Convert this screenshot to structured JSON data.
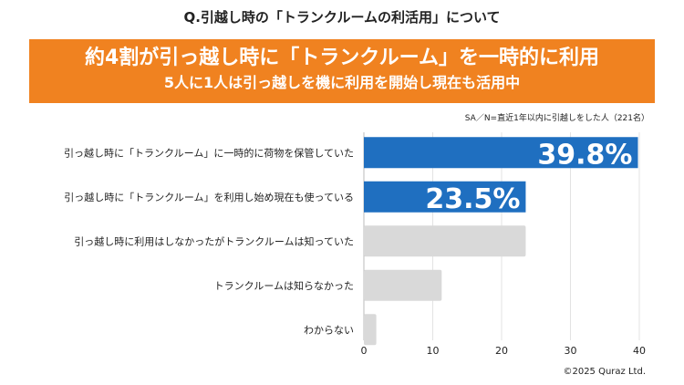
{
  "title": "Q.引越し時の「トランクルームの利活用」について",
  "banner": {
    "headline": "約4割が引っ越し時に「トランクルーム」を一時的に利用",
    "subhead": "5人に1人は引っ越しを機に利用を開始し現在も活用中"
  },
  "note": "SA／N=直近1年以内に引越しをした人（221名）",
  "copyright": "©2025 Quraz Ltd.",
  "colors": {
    "highlight": "#1f6fc0",
    "other": "#d9d9d9",
    "banner": "#f08220"
  },
  "chart_data": {
    "type": "bar",
    "orientation": "horizontal",
    "categories": [
      "引っ越し時に「トランクルーム」に一時的に荷物を保管していた",
      "引っ越し時に「トランクルーム」を利用し始め現在も使っている",
      "引っ越し時に利用はしなかったがトランクルームは知っていた",
      "トランクルームは知らなかった",
      "わからない"
    ],
    "values": [
      39.8,
      23.5,
      23.5,
      11.3,
      1.8
    ],
    "highlighted": [
      true,
      true,
      false,
      false,
      false
    ],
    "data_labels": [
      "39.8%",
      "23.5%",
      "",
      "",
      ""
    ],
    "xlim": [
      0,
      40
    ],
    "xticks": [
      "0",
      "10",
      "20",
      "30",
      "40"
    ],
    "grid": true
  }
}
